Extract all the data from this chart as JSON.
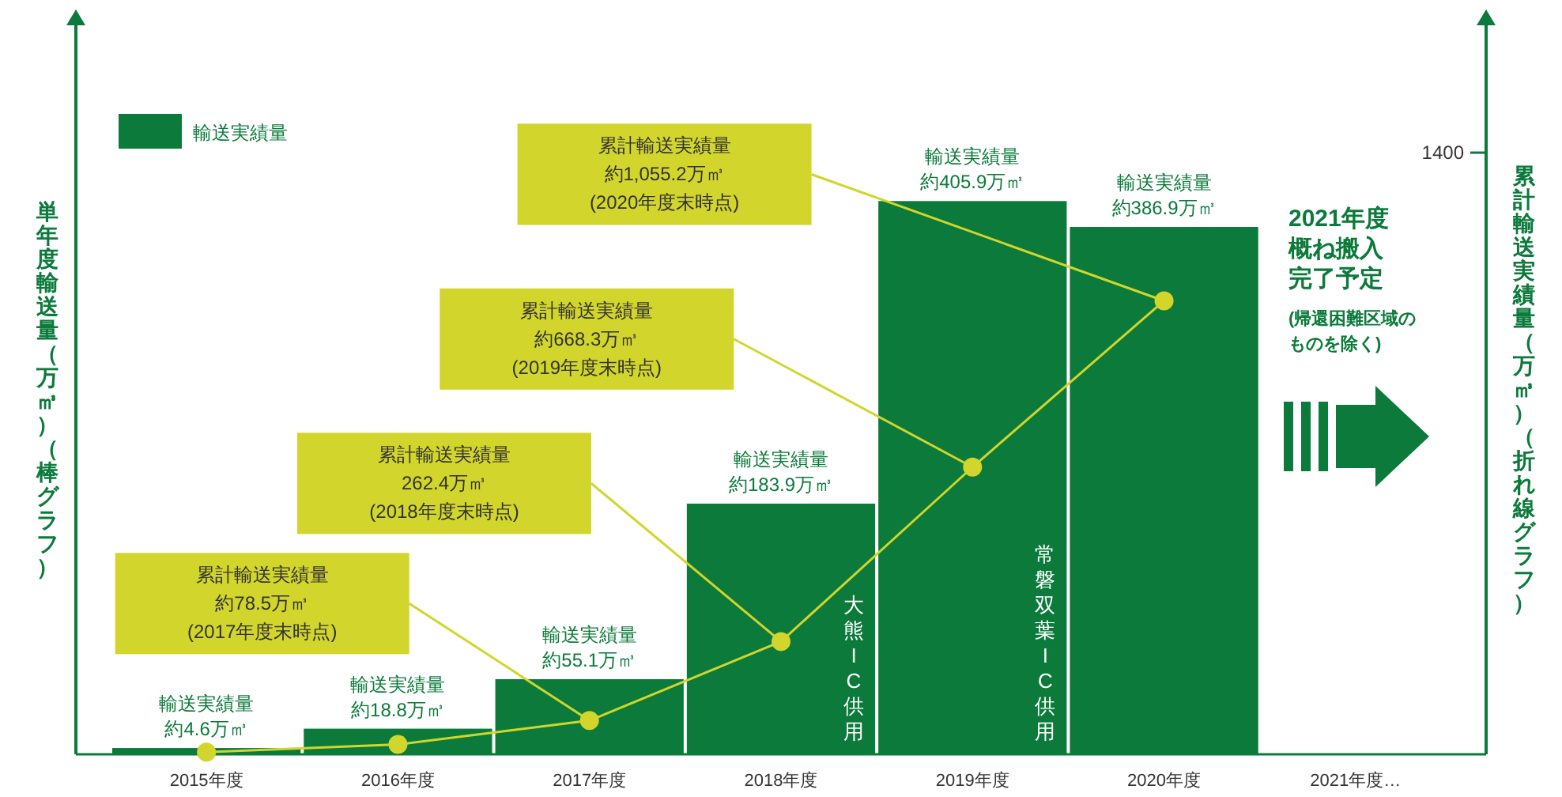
{
  "chart_data": {
    "type": "bar",
    "categories": [
      "2015年度",
      "2016年度",
      "2017年度",
      "2018年度",
      "2019年度",
      "2020年度",
      "2021年度…"
    ],
    "ylabel": "単年度輸送量（万㎥）（棒グラフ）",
    "y2label": "累計輸送実績量（万㎥）（折れ線グラフ）",
    "ylim": [
      0,
      536
    ],
    "y2lim": [
      0,
      1700
    ],
    "y2ticks": [
      1400
    ],
    "legend": "top left",
    "series": [
      {
        "name": "輸送実績量",
        "color": "#0b7a3b",
        "values": [
          4.6,
          18.8,
          55.1,
          183.9,
          405.9,
          386.9,
          null
        ],
        "value_labels": [
          "輸送実績量約4.6万㎥",
          "輸送実績量約18.8万㎥",
          "輸送実績量約55.1万㎥",
          "輸送実績量約183.9万㎥",
          "輸送実績量約405.9万㎥",
          "輸送実績量約386.9万㎥",
          null
        ]
      },
      {
        "type": "line",
        "axis": "y2",
        "color": "#d2d52b",
        "marker": "circle",
        "values": [
          5,
          23,
          78.5,
          262.4,
          668.3,
          1055.2,
          null
        ]
      }
    ],
    "annotations": [
      "累計輸送実績量約78.5万㎥(2017年度末時点)",
      "累計輸送実績量262.4万㎥(2018年度末時点)",
      "累計輸送実績量約668.3万㎥(2019年度末時点)",
      "累計輸送実績量約1,055.2万㎥(2020年度末時点)",
      "大熊IC供用",
      "常磐双葉IC供用",
      "2021年度概ね搬入完了予定",
      "(帰還困難区域のものを除く)"
    ]
  }
}
